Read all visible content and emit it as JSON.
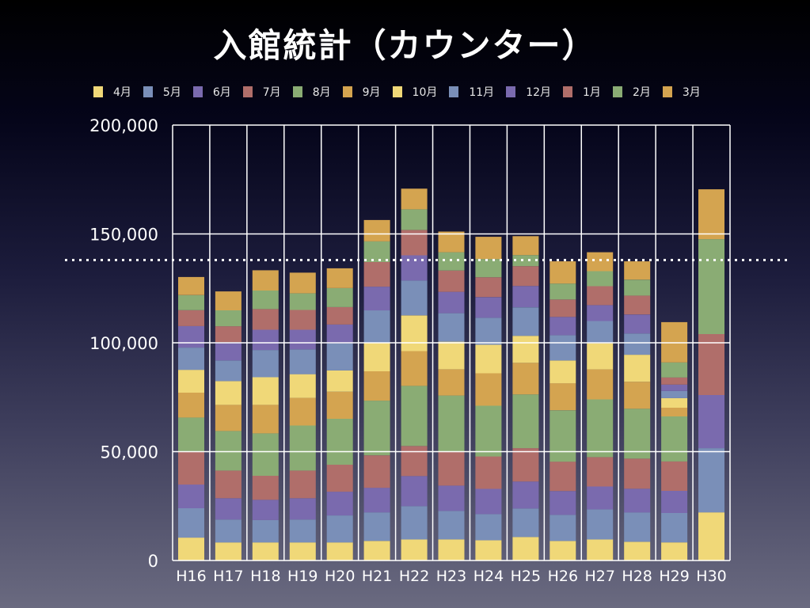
{
  "chart_data": {
    "type": "bar",
    "stacked": true,
    "title": "入館統計（カウンター）",
    "xlabel": "",
    "ylabel": "",
    "ylim": [
      0,
      200000
    ],
    "yticks": [
      0,
      50000,
      100000,
      150000,
      200000
    ],
    "ytick_labels": [
      "0",
      "50,000",
      "100,000",
      "150,000",
      "200,000"
    ],
    "grid": true,
    "legend_position": "top",
    "reference_line": {
      "value": 138000,
      "style": "dotted"
    },
    "categories": [
      "H16",
      "H17",
      "H18",
      "H19",
      "H20",
      "H21",
      "H22",
      "H23",
      "H24",
      "H25",
      "H26",
      "H27",
      "H28",
      "H29",
      "H30"
    ],
    "series": [
      {
        "name": "4月",
        "color": "#f0d878",
        "values": [
          10500,
          8300,
          8300,
          8300,
          8300,
          9000,
          9700,
          9700,
          9300,
          10800,
          9000,
          9700,
          8600,
          8300,
          22100
        ]
      },
      {
        "name": "5月",
        "color": "#7a8fb8",
        "values": [
          13500,
          10500,
          10300,
          10500,
          12400,
          13100,
          15300,
          13100,
          12000,
          13100,
          12000,
          13800,
          13500,
          13500,
          29500
        ]
      },
      {
        "name": "6月",
        "color": "#7a6aae",
        "values": [
          10900,
          9800,
          9300,
          9800,
          10900,
          11300,
          13800,
          11600,
          11600,
          12400,
          10900,
          10500,
          10900,
          10200,
          24400
        ]
      },
      {
        "name": "7月",
        "color": "#b06e6a",
        "values": [
          15300,
          12700,
          11000,
          12700,
          12400,
          14900,
          13800,
          15600,
          14900,
          15300,
          13500,
          13500,
          13800,
          13500,
          28000
        ]
      },
      {
        "name": "8月",
        "color": "#8aac74",
        "values": [
          15500,
          18200,
          19500,
          20700,
          21100,
          25100,
          27600,
          25800,
          23300,
          24700,
          23600,
          26500,
          22900,
          20700,
          43600
        ]
      },
      {
        "name": "9月",
        "color": "#d4a450",
        "values": [
          11400,
          12000,
          13100,
          12700,
          12400,
          13500,
          16000,
          12000,
          14900,
          14500,
          12400,
          13800,
          12400,
          4000,
          22900
        ]
      },
      {
        "name": "10月",
        "color": "#f0d878",
        "values": [
          10500,
          10900,
          12700,
          10900,
          9800,
          13100,
          16400,
          12700,
          13100,
          12400,
          10500,
          12000,
          12400,
          4400,
          0
        ]
      },
      {
        "name": "11月",
        "color": "#7a8fb8",
        "values": [
          10200,
          9500,
          12500,
          11400,
          12400,
          14900,
          16000,
          13100,
          12400,
          13100,
          11600,
          10200,
          9800,
          3300,
          0
        ]
      },
      {
        "name": "12月",
        "color": "#7a6aae",
        "values": [
          9900,
          8400,
          9300,
          9000,
          8700,
          10900,
          11600,
          9800,
          9500,
          9800,
          8400,
          7300,
          8700,
          2900,
          0
        ]
      },
      {
        "name": "1月",
        "color": "#b06e6a",
        "values": [
          7300,
          7300,
          9500,
          9100,
          8000,
          11300,
          11600,
          9800,
          9100,
          9100,
          8000,
          8700,
          8700,
          3300,
          0
        ]
      },
      {
        "name": "2月",
        "color": "#8aac74",
        "values": [
          6900,
          7300,
          8500,
          7600,
          8700,
          9500,
          9500,
          8400,
          8400,
          5100,
          7300,
          6900,
          7300,
          6900,
          0
        ]
      },
      {
        "name": "3月",
        "color": "#d4a450",
        "values": [
          8300,
          8700,
          9300,
          9500,
          9100,
          9800,
          9500,
          9500,
          10200,
          8700,
          10200,
          8700,
          8400,
          18500,
          0
        ]
      }
    ]
  }
}
